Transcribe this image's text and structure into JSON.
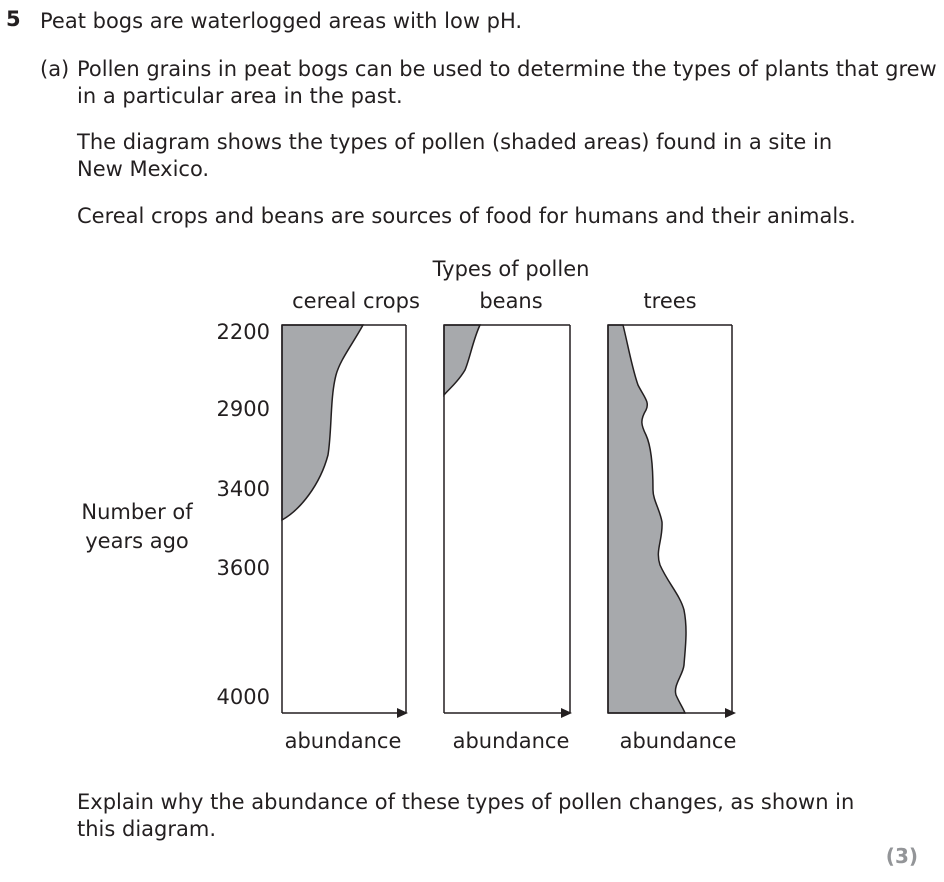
{
  "question": {
    "number": "5",
    "stem": "Peat bogs are waterlogged areas with low pH.",
    "part_label": "(a)",
    "part_line1": "Pollen grains in peat bogs can be used to determine the types of plants that grew",
    "part_line2": "in a particular area in the past.",
    "para1_line1": "The diagram shows the types of pollen (shaded areas) found in a site in",
    "para1_line2": "New Mexico.",
    "para2": "Cereal crops and beans are sources of food for humans and their animals.",
    "prompt_line1": "Explain why the abundance of these types of pollen changes, as shown in",
    "prompt_line2": "this diagram.",
    "marks": "(3)"
  },
  "diagram": {
    "title": "Types of pollen",
    "y_axis_label_line1": "Number of",
    "y_axis_label_line2": "years ago",
    "y_ticks": [
      "2200",
      "2900",
      "3400",
      "3600",
      "4000"
    ],
    "panels": [
      {
        "name": "cereal crops",
        "x_label": "abundance"
      },
      {
        "name": "beans",
        "x_label": "abundance"
      },
      {
        "name": "trees",
        "x_label": "abundance"
      }
    ],
    "shade_color": "#a7a9ac",
    "line_color": "#231f20"
  }
}
